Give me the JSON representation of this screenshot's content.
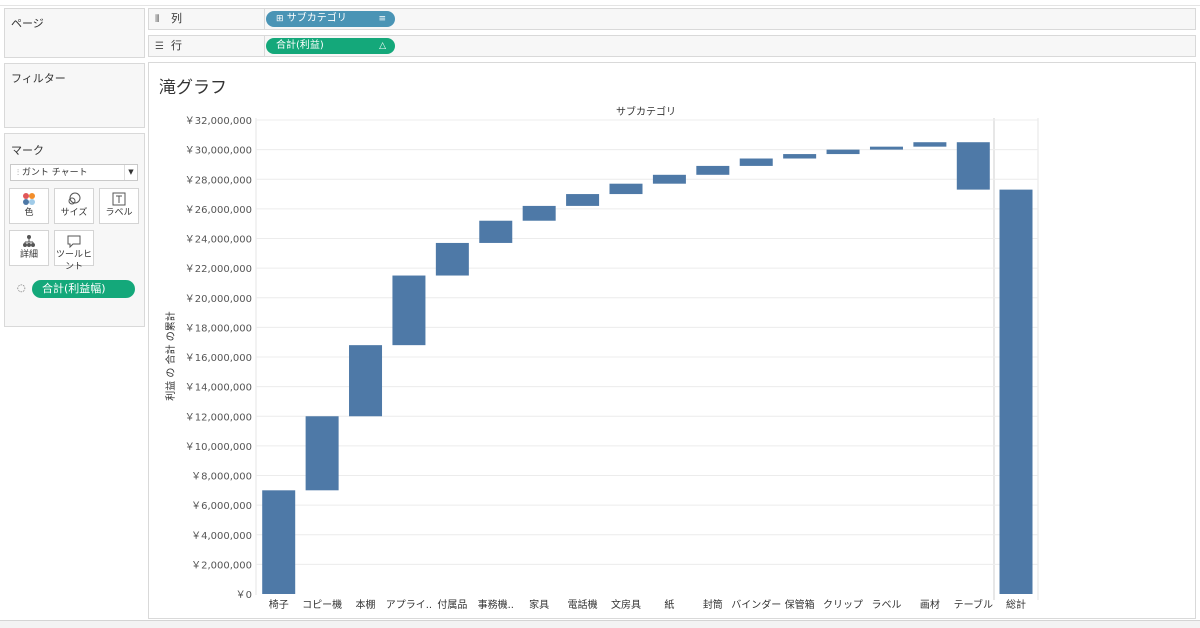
{
  "sidebar": {
    "pages_title": "ページ",
    "filters_title": "フィルター",
    "marks_title": "マーク",
    "mark_type": "ガント チャート",
    "buttons": [
      {
        "label": "色",
        "icon": "color-dots-icon"
      },
      {
        "label": "サイズ",
        "icon": "size-icon"
      },
      {
        "label": "ラベル",
        "icon": "label-icon"
      },
      {
        "label": "詳細",
        "icon": "detail-icon"
      },
      {
        "label": "ツールヒント",
        "icon": "tooltip-icon"
      }
    ],
    "size_pill": "合計(利益幅)"
  },
  "shelves": {
    "columns_label": "列",
    "columns_pill": "サブカテゴリ",
    "rows_label": "行",
    "rows_pill": "合計(利益)"
  },
  "view": {
    "title": "滝グラフ"
  },
  "chart_data": {
    "type": "bar",
    "subtype": "waterfall",
    "title": "サブカテゴリ",
    "ylabel": "利益 の 合計 の累計",
    "ylim": [
      0,
      32000000
    ],
    "ytick_labels": [
      "￥0",
      "￥2,000,000",
      "￥4,000,000",
      "￥6,000,000",
      "￥8,000,000",
      "￥10,000,000",
      "￥12,000,000",
      "￥14,000,000",
      "￥16,000,000",
      "￥18,000,000",
      "￥20,000,000",
      "￥22,000,000",
      "￥24,000,000",
      "￥26,000,000",
      "￥28,000,000",
      "￥30,000,000",
      "￥32,000,000"
    ],
    "ytick_values": [
      0,
      2000000,
      4000000,
      6000000,
      8000000,
      10000000,
      12000000,
      14000000,
      16000000,
      18000000,
      20000000,
      22000000,
      24000000,
      26000000,
      28000000,
      30000000,
      32000000
    ],
    "categories": [
      "椅子",
      "コピー機",
      "本棚",
      "アプライ..",
      "付属品",
      "事務機..",
      "家具",
      "電話機",
      "文房具",
      "紙",
      "封筒",
      "バインダー",
      "保管箱",
      "クリップ",
      "ラベル",
      "画材",
      "テーブル"
    ],
    "starts": [
      0,
      7000000,
      12000000,
      16800000,
      21500000,
      23700000,
      25200000,
      26200000,
      27000000,
      27700000,
      28300000,
      28900000,
      29400000,
      29700000,
      30000000,
      30200000,
      27300000
    ],
    "ends": [
      7000000,
      12000000,
      16800000,
      21500000,
      23700000,
      25200000,
      26200000,
      27000000,
      27700000,
      28300000,
      28900000,
      29400000,
      29700000,
      30000000,
      30200000,
      30500000,
      30500000
    ],
    "total": {
      "label": "総計",
      "value": 27300000
    },
    "bar_color": "#4e79a7",
    "grid": true
  }
}
